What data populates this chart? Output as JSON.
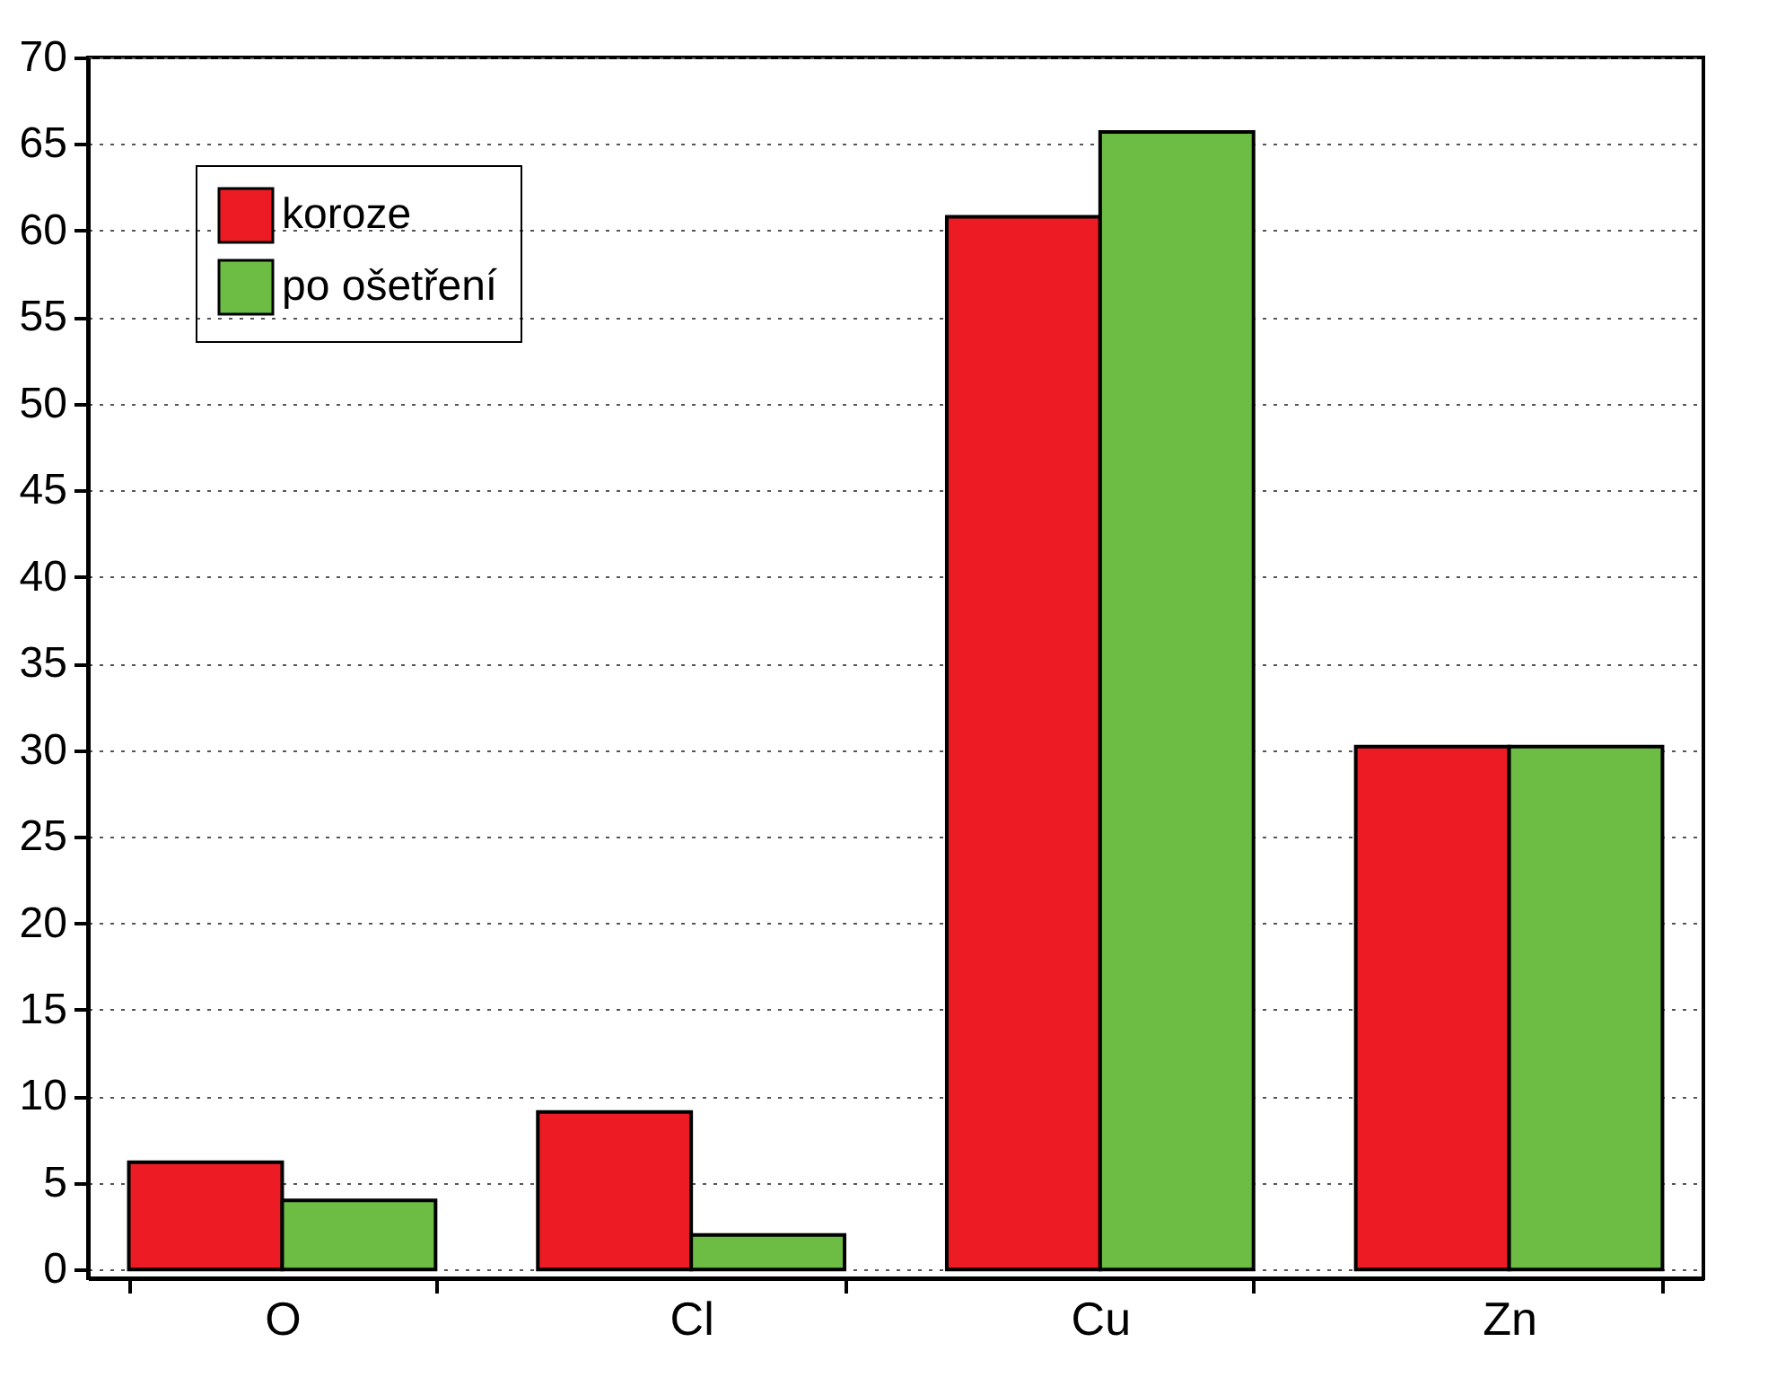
{
  "chart_data": {
    "type": "bar",
    "categories": [
      "O",
      "Cl",
      "Cu",
      "Zn"
    ],
    "series": [
      {
        "name": "koroze",
        "color": "#ed1c24",
        "values": [
          6.2,
          9.1,
          60.8,
          30.2
        ]
      },
      {
        "name": "po ošetření",
        "color": "#6dbd45",
        "values": [
          4.0,
          2.0,
          65.7,
          30.2
        ]
      }
    ],
    "ylim": [
      -0.5,
      70
    ],
    "yticks": [
      0,
      5,
      10,
      15,
      20,
      25,
      30,
      35,
      40,
      45,
      50,
      55,
      60,
      65,
      70
    ],
    "grid": "y",
    "legend": "top left"
  }
}
